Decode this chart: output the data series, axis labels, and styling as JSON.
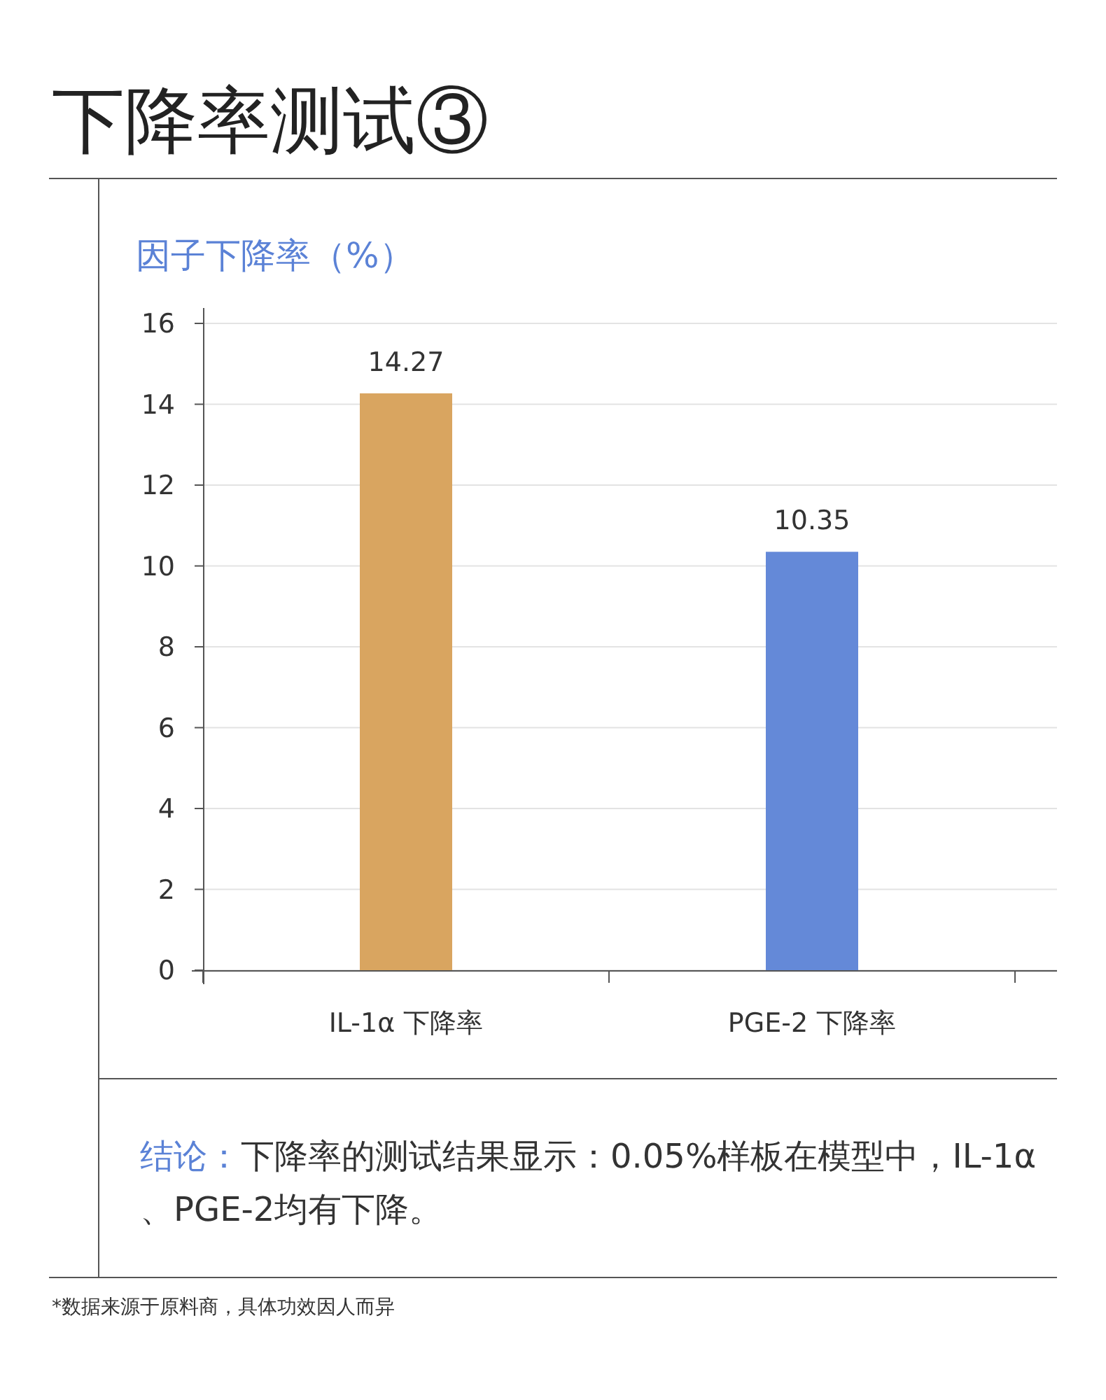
{
  "chart_data": {
    "type": "bar",
    "title": "下降率测试③",
    "subtitle": "因子下降率（%）",
    "categories": [
      "IL-1α 下降率",
      "PGE-2 下降率"
    ],
    "values": [
      14.27,
      10.35
    ],
    "colors": [
      "#d9a560",
      "#6489d8"
    ],
    "ylim": [
      0,
      16
    ],
    "yticks": [
      0,
      2,
      4,
      6,
      8,
      10,
      12,
      14,
      16
    ],
    "grid": "y",
    "data_labels": true,
    "annotations": [
      "结论：",
      "下降率的测试结果显示：0.05%样板在模型中，IL-1α、PGE-2均有下降。",
      "*数据来源于原料商，具体功效因人而异"
    ]
  }
}
